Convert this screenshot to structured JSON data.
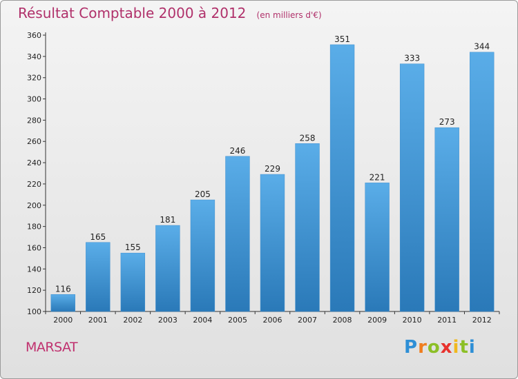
{
  "title": "Résultat Comptable 2000 à 2012",
  "unit_label": "(en milliers d'€)",
  "commune": "MARSAT",
  "brand": {
    "letters": [
      "P",
      "r",
      "o",
      "x",
      "i",
      "t",
      "i"
    ],
    "colors": [
      "#2e8fd6",
      "#f07d1e",
      "#8cbf26",
      "#e8322d",
      "#f0b81e",
      "#8cbf26",
      "#2e8fd6"
    ]
  },
  "colors": {
    "bar_top": "#5aade8",
    "bar_bottom": "#2a79b8",
    "axis": "#333333",
    "grid": "#cccccc"
  },
  "chart_data": {
    "type": "bar",
    "categories": [
      "2000",
      "2001",
      "2002",
      "2003",
      "2004",
      "2005",
      "2006",
      "2007",
      "2008",
      "2009",
      "2010",
      "2011",
      "2012"
    ],
    "values": [
      116,
      165,
      155,
      181,
      205,
      246,
      229,
      258,
      351,
      221,
      333,
      273,
      344
    ],
    "ylim": [
      100,
      360
    ],
    "yticks": [
      100,
      120,
      140,
      160,
      180,
      200,
      220,
      240,
      260,
      280,
      300,
      320,
      340,
      360
    ],
    "grid": false,
    "data_labels": true
  }
}
